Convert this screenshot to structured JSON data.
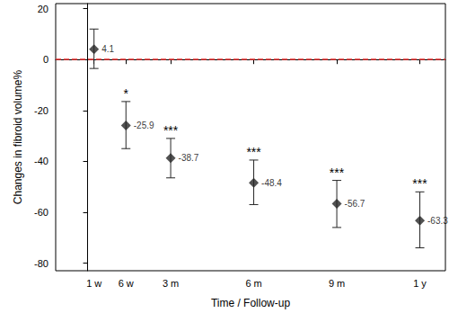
{
  "chart_data": {
    "type": "scatter",
    "x_label": "Time / Follow-up",
    "y_label": "Changes in fibroid volume%",
    "x": [
      1,
      6,
      13,
      26,
      39,
      52
    ],
    "values": [
      4.1,
      -25.9,
      -38.7,
      -48.4,
      -56.7,
      -63.3
    ],
    "error_low": [
      -3.5,
      -35,
      -46.5,
      -57,
      -66,
      -74
    ],
    "error_high": [
      12,
      -16.5,
      -31,
      -39.5,
      -47.5,
      -52
    ],
    "significance": [
      null,
      "*",
      "***",
      "***",
      "***",
      "***"
    ],
    "color": "#262626",
    "marker": "diamond",
    "data_labels": true,
    "grid": false,
    "xlim": [
      -5,
      56
    ],
    "xticks": [
      {
        "value": 1,
        "label": "1 w"
      },
      {
        "value": 6,
        "label": "6 w"
      },
      {
        "value": 13,
        "label": "3 m"
      },
      {
        "value": 26,
        "label": "6 m"
      },
      {
        "value": 39,
        "label": "9 m"
      },
      {
        "value": 52,
        "label": "1 y"
      }
    ],
    "ylim": [
      -83,
      22
    ],
    "yticks": [
      -80,
      -60,
      -40,
      -20,
      0,
      20
    ],
    "reference_line": {
      "y": 0,
      "color": "#e8312f",
      "line_style": "dashed"
    }
  }
}
